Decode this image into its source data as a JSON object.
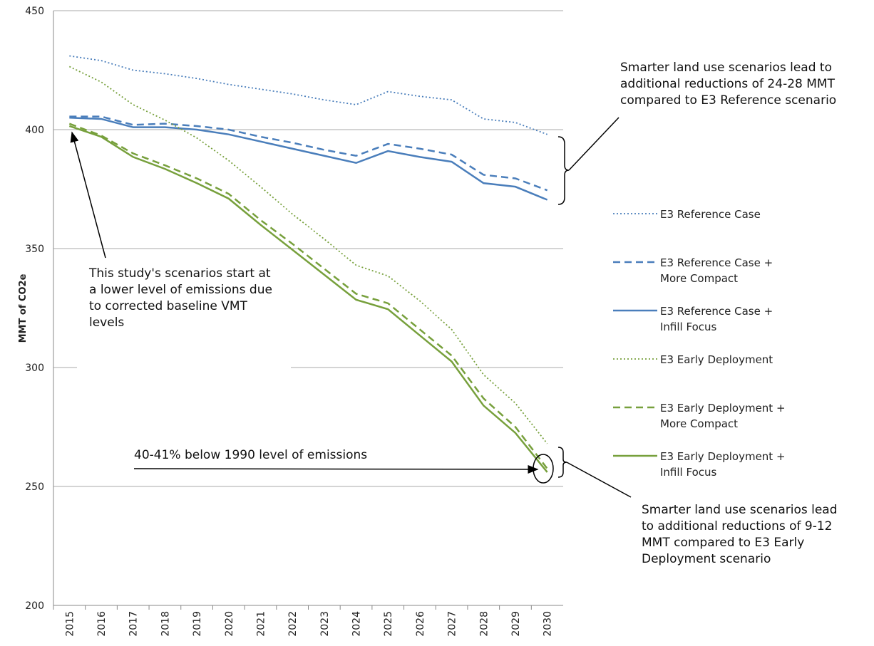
{
  "chart_data": {
    "type": "line",
    "y_label": "MMT of CO2e",
    "categories": [
      "2015",
      "2016",
      "2017",
      "2018",
      "2019",
      "2020",
      "2021",
      "2022",
      "2023",
      "2024",
      "2025",
      "2026",
      "2027",
      "2028",
      "2029",
      "2030"
    ],
    "ylim": [
      200,
      450
    ],
    "yticks": [
      200,
      250,
      300,
      350,
      400,
      450
    ],
    "grid": true,
    "series": [
      {
        "name": "E3 Reference Case",
        "color": "#4a7ebb",
        "dash": "dotted",
        "values": [
          431,
          429,
          425,
          423.5,
          421.5,
          419,
          417,
          415,
          412.5,
          410.5,
          416,
          414,
          412.5,
          404.5,
          403,
          398
        ]
      },
      {
        "name": "E3 Reference Case + More Compact",
        "color": "#4a7ebb",
        "dash": "dashed",
        "values": [
          405.5,
          405.5,
          402,
          402.5,
          401.5,
          400,
          397,
          394.5,
          391.5,
          389,
          394,
          392,
          389.5,
          381,
          379.5,
          374.5
        ]
      },
      {
        "name": "E3 Reference Case + Infill Focus",
        "color": "#4a7ebb",
        "dash": "solid",
        "values": [
          405,
          404.5,
          401,
          401,
          400,
          398,
          395,
          392,
          389,
          386,
          391,
          388.5,
          386.5,
          377.5,
          376,
          370.5
        ]
      },
      {
        "name": "E3 Early Deployment",
        "color": "#77a03c",
        "dash": "dotted",
        "values": [
          426.5,
          420,
          410.5,
          404,
          396.5,
          387,
          376,
          364.5,
          354,
          343,
          338.5,
          328,
          316,
          297,
          285,
          268
        ]
      },
      {
        "name": "E3 Early Deployment + More Compact",
        "color": "#77a03c",
        "dash": "dashed",
        "values": [
          402.5,
          397.5,
          390,
          385,
          379.5,
          373,
          362,
          352,
          341.5,
          331,
          327,
          316,
          305,
          287,
          275,
          257.5
        ]
      },
      {
        "name": "E3 Early Deployment + Infill Focus",
        "color": "#77a03c",
        "dash": "solid",
        "values": [
          401.5,
          397,
          388.5,
          383.5,
          377.5,
          371,
          360,
          349.5,
          339,
          328.5,
          324.5,
          313.5,
          302.5,
          284,
          272.5,
          256
        ]
      }
    ],
    "annotations": [
      "Smarter land use scenarios lead to additional reductions of 24-28 MMT compared to E3 Reference scenario",
      "This study's scenarios start at a lower level of emissions due to corrected baseline VMT levels",
      "40-41% below 1990 level of emissions",
      "Smarter land use scenarios lead to additional reductions of 9-12 MMT compared to E3 Early Deployment scenario"
    ]
  }
}
